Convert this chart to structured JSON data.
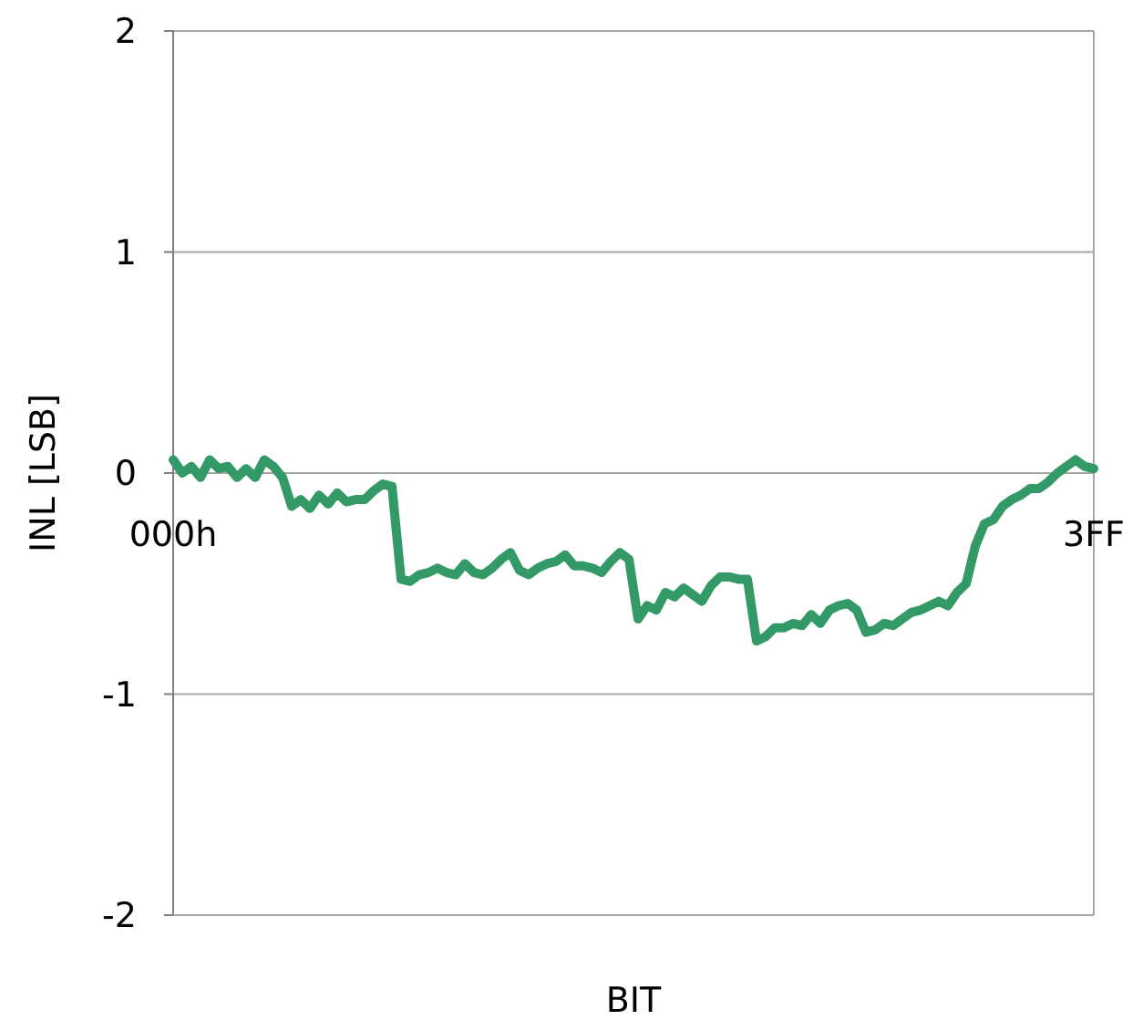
{
  "chart_data": {
    "type": "line",
    "xlabel": "BIT",
    "ylabel": "INL [LSB]",
    "categories": [
      "000h",
      null,
      null,
      null,
      null,
      null,
      null,
      null,
      null,
      null,
      null,
      null,
      null,
      null,
      null,
      null,
      null,
      null,
      null,
      null,
      null,
      null,
      null,
      null,
      null,
      null,
      null,
      null,
      null,
      null,
      null,
      null,
      null,
      null,
      null,
      null,
      null,
      null,
      null,
      null,
      null,
      null,
      null,
      null,
      null,
      null,
      null,
      null,
      null,
      null,
      null,
      null,
      null,
      null,
      null,
      null,
      null,
      null,
      null,
      null,
      null,
      null,
      null,
      null,
      null,
      null,
      null,
      null,
      null,
      null,
      null,
      null,
      null,
      null,
      null,
      null,
      null,
      null,
      null,
      null,
      null,
      null,
      null,
      null,
      null,
      null,
      null,
      null,
      null,
      null,
      null,
      null,
      null,
      null,
      null,
      null,
      null,
      null,
      null,
      null,
      null,
      "3FF"
    ],
    "ylim": [
      -2,
      2
    ],
    "yticks": [
      -2,
      -1,
      0,
      1,
      2
    ],
    "grid": "y",
    "marker": "none",
    "line_style": "solid",
    "series": [
      {
        "color": "#339966",
        "values": [
          0.06,
          0,
          0.03,
          -0.02,
          0.06,
          0.02,
          0.03,
          -0.02,
          0.02,
          -0.02,
          0.06,
          0.03,
          -0.02,
          -0.15,
          -0.12,
          -0.16,
          -0.1,
          -0.14,
          -0.09,
          -0.13,
          -0.12,
          -0.12,
          -0.08,
          -0.05,
          -0.06,
          -0.48,
          -0.49,
          -0.46,
          -0.45,
          -0.43,
          -0.45,
          -0.46,
          -0.41,
          -0.45,
          -0.46,
          -0.43,
          -0.39,
          -0.36,
          -0.44,
          -0.46,
          -0.43,
          -0.41,
          -0.4,
          -0.37,
          -0.42,
          -0.42,
          -0.43,
          -0.45,
          -0.4,
          -0.36,
          -0.39,
          -0.66,
          -0.6,
          -0.62,
          -0.54,
          -0.56,
          -0.52,
          -0.55,
          -0.58,
          -0.51,
          -0.47,
          -0.47,
          -0.48,
          -0.48,
          -0.76,
          -0.74,
          -0.7,
          -0.7,
          -0.68,
          -0.69,
          -0.64,
          -0.68,
          -0.62,
          -0.6,
          -0.59,
          -0.62,
          -0.72,
          -0.71,
          -0.68,
          -0.69,
          -0.66,
          -0.63,
          -0.62,
          -0.6,
          -0.58,
          -0.6,
          -0.54,
          -0.5,
          -0.33,
          -0.23,
          -0.21,
          -0.15,
          -0.12,
          -0.1,
          -0.07,
          -0.07,
          -0.04,
          0,
          0.03,
          0.06,
          0.03,
          0.02
        ]
      }
    ]
  }
}
